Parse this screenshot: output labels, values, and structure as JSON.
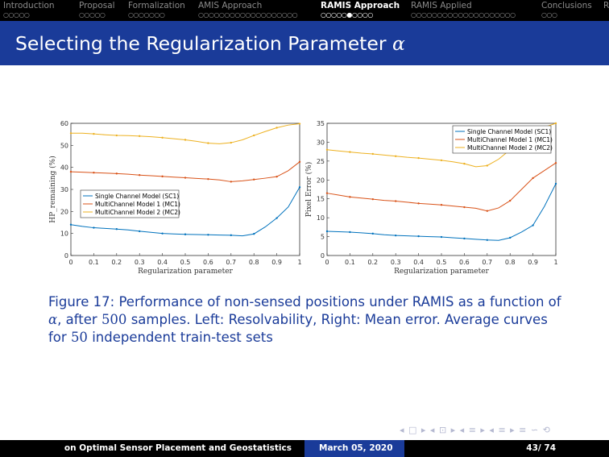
{
  "nav": {
    "sections": [
      {
        "label": "Introduction",
        "dots": "○○○○○",
        "active": false
      },
      {
        "label": "Proposal",
        "dots": "○○○○○",
        "active": false
      },
      {
        "label": "Formalization",
        "dots": "○○○○○○○",
        "active": false
      },
      {
        "label": "AMIS Approach",
        "dots": "○○○○○○○○○○○○○○○○○○○",
        "active": false
      },
      {
        "label": "RAMIS Approach",
        "dots": "○○○○○●○○○○",
        "active": true
      },
      {
        "label": "RAMIS Applied",
        "dots": "○○○○○○○○○○○○○○○○○○○○",
        "active": false
      },
      {
        "label": "Conclusions",
        "dots": "○○○",
        "active": false
      },
      {
        "label": "R",
        "dots": "",
        "active": false
      }
    ]
  },
  "slide": {
    "title": "Selecting the Regularization Parameter",
    "title_symbol": "α"
  },
  "legend": {
    "sc1": "Single Channel Model (SC1)",
    "mc1": "MultiChannel Model 1 (MC1)",
    "mc2": "MultiChannel Model 2 (MC2)"
  },
  "colors": {
    "sc1": "#0072BD",
    "mc1": "#D95319",
    "mc2": "#EDB120",
    "theme_blue": "#1a3b99"
  },
  "chart_data": [
    {
      "type": "line",
      "x": [
        0,
        0.05,
        0.1,
        0.15,
        0.2,
        0.25,
        0.3,
        0.35,
        0.4,
        0.45,
        0.5,
        0.55,
        0.6,
        0.65,
        0.7,
        0.75,
        0.8,
        0.85,
        0.9,
        0.95,
        1
      ],
      "series": [
        {
          "name": "Single Channel Model (SC1)",
          "color": "#0072BD",
          "values": [
            14,
            13.2,
            12.6,
            12.3,
            12,
            11.6,
            11,
            10.5,
            10,
            9.8,
            9.6,
            9.5,
            9.4,
            9.3,
            9.2,
            8.9,
            9.8,
            13,
            17,
            22,
            31
          ]
        },
        {
          "name": "MultiChannel Model 1 (MC1)",
          "color": "#D95319",
          "values": [
            38,
            37.8,
            37.6,
            37.4,
            37.2,
            36.9,
            36.5,
            36.2,
            35.9,
            35.6,
            35.3,
            35,
            34.7,
            34.3,
            33.5,
            33.9,
            34.5,
            35.1,
            35.8,
            38.5,
            42.5
          ]
        },
        {
          "name": "MultiChannel Model 2 (MC2)",
          "color": "#EDB120",
          "values": [
            55.5,
            55.5,
            55.2,
            54.8,
            54.5,
            54.4,
            54.2,
            53.9,
            53.5,
            53,
            52.5,
            51.8,
            51,
            50.7,
            51.2,
            52.5,
            54.5,
            56.3,
            58,
            59.2,
            59.8
          ]
        }
      ],
      "xlabel": "Regularization parameter",
      "ylabel": "HP_remaining (%)",
      "xlim": [
        0,
        1
      ],
      "ylim": [
        0,
        60
      ],
      "xticks": [
        "0",
        "0.1",
        "0.2",
        "0.3",
        "0.4",
        "0.5",
        "0.6",
        "0.7",
        "0.8",
        "0.9",
        "1"
      ],
      "yticks": [
        "0",
        "10",
        "20",
        "30",
        "40",
        "50",
        "60"
      ],
      "grid": false,
      "legend_position": "lower-left"
    },
    {
      "type": "line",
      "x": [
        0,
        0.05,
        0.1,
        0.15,
        0.2,
        0.25,
        0.3,
        0.35,
        0.4,
        0.45,
        0.5,
        0.55,
        0.6,
        0.65,
        0.7,
        0.75,
        0.8,
        0.85,
        0.9,
        0.95,
        1
      ],
      "series": [
        {
          "name": "Single Channel Model (SC1)",
          "color": "#0072BD",
          "values": [
            6.4,
            6.3,
            6.2,
            6,
            5.8,
            5.5,
            5.3,
            5.2,
            5.1,
            5,
            4.9,
            4.7,
            4.5,
            4.3,
            4.1,
            4,
            4.7,
            6.2,
            8,
            13,
            19
          ]
        },
        {
          "name": "MultiChannel Model 1 (MC1)",
          "color": "#D95319",
          "values": [
            16.5,
            16,
            15.5,
            15.2,
            14.9,
            14.6,
            14.4,
            14.1,
            13.8,
            13.6,
            13.4,
            13.1,
            12.8,
            12.5,
            11.8,
            12.6,
            14.5,
            17.5,
            20.5,
            22.5,
            24.5
          ]
        },
        {
          "name": "MultiChannel Model 2 (MC2)",
          "color": "#EDB120",
          "values": [
            28,
            27.7,
            27.4,
            27.1,
            26.9,
            26.6,
            26.3,
            26,
            25.8,
            25.5,
            25.2,
            24.8,
            24.3,
            23.5,
            23.8,
            25.5,
            28,
            31,
            33,
            34,
            35
          ]
        }
      ],
      "xlabel": "Regularization parameter",
      "ylabel": "Pixel Error (%)",
      "xlim": [
        0,
        1
      ],
      "ylim": [
        0,
        35
      ],
      "xticks": [
        "0",
        "0.1",
        "0.2",
        "0.3",
        "0.4",
        "0.5",
        "0.6",
        "0.7",
        "0.8",
        "0.9",
        "1"
      ],
      "yticks": [
        "0",
        "5",
        "10",
        "15",
        "20",
        "25",
        "30",
        "35"
      ],
      "grid": false,
      "legend_position": "top-right"
    }
  ],
  "caption": {
    "label": "Figure 17:",
    "text1": "Performance of non-sensed positions under RAMIS as a function of",
    "alpha": "α",
    "text2": ", after",
    "samples": "500",
    "text3": "samples. Left: Resolvability, Right: Mean error. Average curves for",
    "sets": "50",
    "text4": "independent train-test sets"
  },
  "beamer_nav": "◂ □ ▸ ◂ ⊡ ▸ ◂ ≡ ▸ ◂ ≡ ▸ ≡ ∽ ⟲",
  "footer": {
    "left": "on Optimal Sensor Placement and Geostatistics",
    "date": "March 05, 2020",
    "page": "43/ 74"
  }
}
